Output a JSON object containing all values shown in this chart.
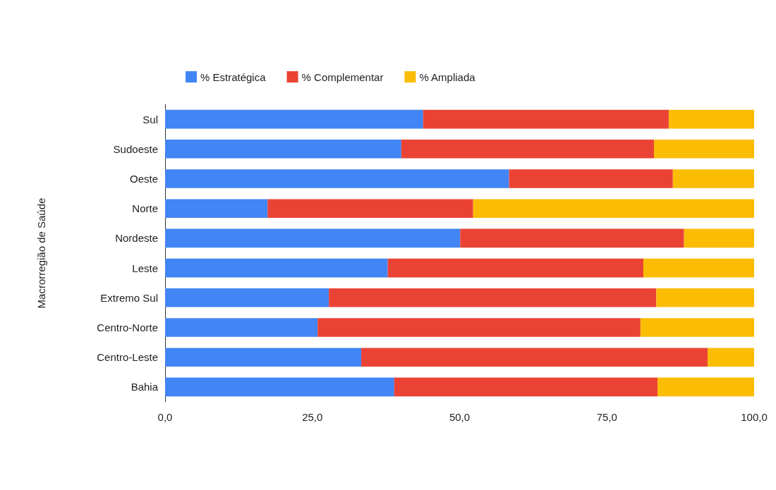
{
  "chart_data": {
    "type": "bar",
    "orientation": "horizontal",
    "stacked": true,
    "ylabel": "Macrorregião de Saúde",
    "categories": [
      "Sul",
      "Sudoeste",
      "Oeste",
      "Norte",
      "Nordeste",
      "Leste",
      "Extremo Sul",
      "Centro-Norte",
      "Centro-Leste",
      "Bahia"
    ],
    "series": [
      {
        "name": "% Estratégica",
        "color": "#4285f4",
        "values": [
          43.8,
          40.1,
          58.4,
          17.4,
          50.1,
          37.8,
          27.8,
          25.9,
          33.3,
          38.9
        ]
      },
      {
        "name": "% Complementar",
        "color": "#ea4335",
        "values": [
          41.7,
          42.9,
          27.8,
          34.9,
          38.0,
          43.4,
          55.6,
          54.8,
          58.8,
          44.7
        ]
      },
      {
        "name": "% Ampliada",
        "color": "#fbbc04",
        "values": [
          14.5,
          17.0,
          13.8,
          47.7,
          11.9,
          18.8,
          16.6,
          19.3,
          7.9,
          16.4
        ]
      }
    ],
    "xlim": [
      0,
      100
    ],
    "xticks": [
      {
        "value": 0,
        "label": "0,0"
      },
      {
        "value": 25,
        "label": "25,0"
      },
      {
        "value": 50,
        "label": "50,0"
      },
      {
        "value": 75,
        "label": "75,0"
      },
      {
        "value": 100,
        "label": "100,0"
      }
    ],
    "grid": false,
    "legend": "top"
  }
}
